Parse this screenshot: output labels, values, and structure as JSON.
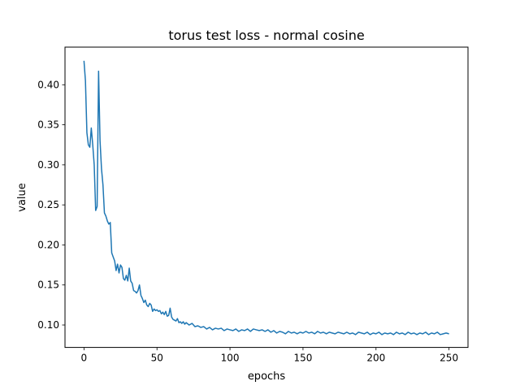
{
  "chart_data": {
    "type": "line",
    "title": "torus test loss - normal cosine",
    "xlabel": "epochs",
    "ylabel": "value",
    "xlim": [
      -13,
      263
    ],
    "ylim": [
      0.072,
      0.447
    ],
    "xticks": [
      0,
      50,
      100,
      150,
      200,
      250
    ],
    "yticks": [
      0.1,
      0.15,
      0.2,
      0.25,
      0.3,
      0.35,
      0.4
    ],
    "grid": false,
    "legend": "none",
    "series": [
      {
        "color": "#1f77b4",
        "points": [
          [
            0,
            0.43
          ],
          [
            1,
            0.405
          ],
          [
            2,
            0.34
          ],
          [
            3,
            0.325
          ],
          [
            4,
            0.322
          ],
          [
            5,
            0.346
          ],
          [
            6,
            0.325
          ],
          [
            7,
            0.3
          ],
          [
            8,
            0.243
          ],
          [
            9,
            0.248
          ],
          [
            10,
            0.417
          ],
          [
            11,
            0.33
          ],
          [
            12,
            0.295
          ],
          [
            13,
            0.275
          ],
          [
            14,
            0.24
          ],
          [
            15,
            0.236
          ],
          [
            16,
            0.23
          ],
          [
            17,
            0.226
          ],
          [
            18,
            0.228
          ],
          [
            19,
            0.19
          ],
          [
            20,
            0.185
          ],
          [
            21,
            0.18
          ],
          [
            22,
            0.168
          ],
          [
            23,
            0.176
          ],
          [
            24,
            0.165
          ],
          [
            25,
            0.175
          ],
          [
            26,
            0.172
          ],
          [
            27,
            0.158
          ],
          [
            28,
            0.156
          ],
          [
            29,
            0.162
          ],
          [
            30,
            0.155
          ],
          [
            31,
            0.171
          ],
          [
            32,
            0.155
          ],
          [
            33,
            0.152
          ],
          [
            34,
            0.143
          ],
          [
            35,
            0.142
          ],
          [
            36,
            0.14
          ],
          [
            37,
            0.143
          ],
          [
            38,
            0.15
          ],
          [
            39,
            0.137
          ],
          [
            40,
            0.133
          ],
          [
            41,
            0.128
          ],
          [
            42,
            0.131
          ],
          [
            43,
            0.125
          ],
          [
            44,
            0.123
          ],
          [
            45,
            0.127
          ],
          [
            46,
            0.125
          ],
          [
            47,
            0.117
          ],
          [
            48,
            0.12
          ],
          [
            49,
            0.118
          ],
          [
            50,
            0.119
          ],
          [
            51,
            0.117
          ],
          [
            52,
            0.118
          ],
          [
            53,
            0.114
          ],
          [
            54,
            0.116
          ],
          [
            55,
            0.113
          ],
          [
            56,
            0.117
          ],
          [
            57,
            0.111
          ],
          [
            58,
            0.112
          ],
          [
            59,
            0.121
          ],
          [
            60,
            0.11
          ],
          [
            61,
            0.107
          ],
          [
            62,
            0.106
          ],
          [
            63,
            0.105
          ],
          [
            64,
            0.108
          ],
          [
            65,
            0.103
          ],
          [
            66,
            0.104
          ],
          [
            67,
            0.102
          ],
          [
            68,
            0.104
          ],
          [
            69,
            0.101
          ],
          [
            70,
            0.103
          ],
          [
            72,
            0.1
          ],
          [
            74,
            0.102
          ],
          [
            76,
            0.098
          ],
          [
            78,
            0.099
          ],
          [
            80,
            0.097
          ],
          [
            82,
            0.098
          ],
          [
            84,
            0.095
          ],
          [
            86,
            0.097
          ],
          [
            88,
            0.094
          ],
          [
            90,
            0.096
          ],
          [
            92,
            0.095
          ],
          [
            94,
            0.096
          ],
          [
            96,
            0.093
          ],
          [
            98,
            0.095
          ],
          [
            100,
            0.094
          ],
          [
            102,
            0.093
          ],
          [
            104,
            0.095
          ],
          [
            106,
            0.092
          ],
          [
            108,
            0.094
          ],
          [
            110,
            0.093
          ],
          [
            112,
            0.095
          ],
          [
            114,
            0.092
          ],
          [
            116,
            0.095
          ],
          [
            118,
            0.094
          ],
          [
            120,
            0.093
          ],
          [
            122,
            0.094
          ],
          [
            124,
            0.092
          ],
          [
            126,
            0.094
          ],
          [
            128,
            0.091
          ],
          [
            130,
            0.093
          ],
          [
            132,
            0.09
          ],
          [
            134,
            0.092
          ],
          [
            136,
            0.091
          ],
          [
            138,
            0.089
          ],
          [
            140,
            0.092
          ],
          [
            142,
            0.09
          ],
          [
            144,
            0.091
          ],
          [
            146,
            0.089
          ],
          [
            148,
            0.091
          ],
          [
            150,
            0.09
          ],
          [
            152,
            0.092
          ],
          [
            154,
            0.09
          ],
          [
            156,
            0.091
          ],
          [
            158,
            0.089
          ],
          [
            160,
            0.092
          ],
          [
            162,
            0.09
          ],
          [
            164,
            0.091
          ],
          [
            166,
            0.089
          ],
          [
            168,
            0.091
          ],
          [
            170,
            0.09
          ],
          [
            172,
            0.089
          ],
          [
            174,
            0.091
          ],
          [
            176,
            0.09
          ],
          [
            178,
            0.089
          ],
          [
            180,
            0.091
          ],
          [
            182,
            0.089
          ],
          [
            184,
            0.09
          ],
          [
            186,
            0.088
          ],
          [
            188,
            0.091
          ],
          [
            190,
            0.09
          ],
          [
            192,
            0.089
          ],
          [
            194,
            0.091
          ],
          [
            196,
            0.088
          ],
          [
            198,
            0.09
          ],
          [
            200,
            0.089
          ],
          [
            202,
            0.091
          ],
          [
            204,
            0.088
          ],
          [
            206,
            0.09
          ],
          [
            208,
            0.089
          ],
          [
            210,
            0.09
          ],
          [
            212,
            0.088
          ],
          [
            214,
            0.091
          ],
          [
            216,
            0.089
          ],
          [
            218,
            0.09
          ],
          [
            220,
            0.088
          ],
          [
            222,
            0.091
          ],
          [
            224,
            0.089
          ],
          [
            226,
            0.09
          ],
          [
            228,
            0.088
          ],
          [
            230,
            0.09
          ],
          [
            232,
            0.089
          ],
          [
            234,
            0.091
          ],
          [
            236,
            0.088
          ],
          [
            238,
            0.09
          ],
          [
            240,
            0.089
          ],
          [
            242,
            0.091
          ],
          [
            244,
            0.088
          ],
          [
            246,
            0.089
          ],
          [
            248,
            0.09
          ],
          [
            250,
            0.089
          ]
        ]
      }
    ]
  }
}
